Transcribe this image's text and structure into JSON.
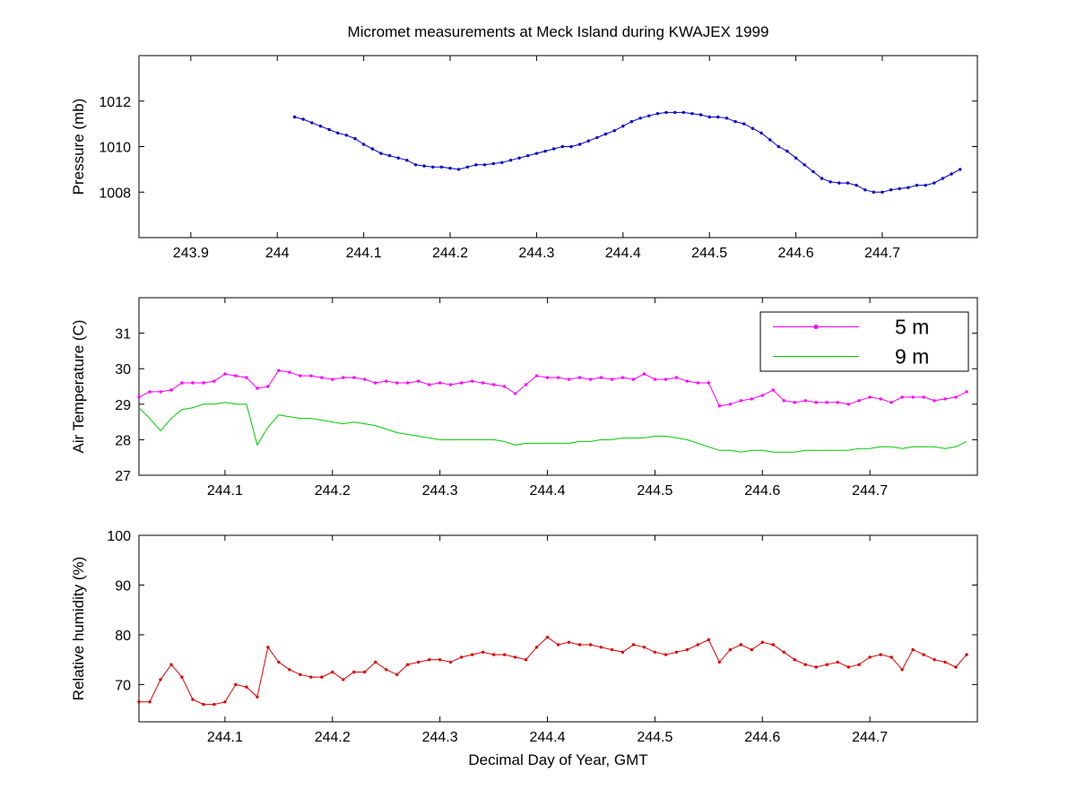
{
  "figure": {
    "title": "Micromet measurements at Meck Island during KWAJEX 1999",
    "background": "#ffffff",
    "axis_color": "#000000"
  },
  "chart_data": [
    {
      "name": "pressure",
      "type": "line",
      "ylabel": "Pressure (mb)",
      "grid": false,
      "xlim": [
        243.84,
        244.81
      ],
      "ylim": [
        1006,
        1014
      ],
      "xticks": [
        243.9,
        244,
        244.1,
        244.2,
        244.3,
        244.4,
        244.5,
        244.6,
        244.7
      ],
      "xtick_labels": [
        "243.9",
        "244",
        "244.1",
        "244.2",
        "244.3",
        "244.4",
        "244.5",
        "244.6",
        "244.7"
      ],
      "yticks": [
        1008,
        1010,
        1012
      ],
      "x": [
        244.02,
        244.03,
        244.04,
        244.05,
        244.06,
        244.07,
        244.08,
        244.09,
        244.1,
        244.11,
        244.12,
        244.13,
        244.14,
        244.15,
        244.16,
        244.17,
        244.18,
        244.19,
        244.2,
        244.21,
        244.22,
        244.23,
        244.24,
        244.25,
        244.26,
        244.27,
        244.28,
        244.29,
        244.3,
        244.31,
        244.32,
        244.33,
        244.34,
        244.35,
        244.36,
        244.37,
        244.38,
        244.39,
        244.4,
        244.41,
        244.42,
        244.43,
        244.44,
        244.45,
        244.46,
        244.47,
        244.48,
        244.49,
        244.5,
        244.51,
        244.52,
        244.53,
        244.54,
        244.55,
        244.56,
        244.57,
        244.58,
        244.59,
        244.6,
        244.61,
        244.62,
        244.63,
        244.64,
        244.65,
        244.66,
        244.67,
        244.68,
        244.69,
        244.7,
        244.71,
        244.72,
        244.73,
        244.74,
        244.75,
        244.76,
        244.77,
        244.78,
        244.79
      ],
      "series": [
        {
          "name": "Pressure",
          "color": "#0000cc",
          "marker": true,
          "values": [
            1011.3,
            1011.2,
            1011.05,
            1010.9,
            1010.75,
            1010.6,
            1010.5,
            1010.35,
            1010.1,
            1009.9,
            1009.7,
            1009.6,
            1009.5,
            1009.4,
            1009.2,
            1009.15,
            1009.1,
            1009.1,
            1009.05,
            1009.0,
            1009.1,
            1009.2,
            1009.2,
            1009.25,
            1009.3,
            1009.4,
            1009.5,
            1009.6,
            1009.7,
            1009.8,
            1009.9,
            1010.0,
            1010.0,
            1010.1,
            1010.25,
            1010.4,
            1010.55,
            1010.7,
            1010.9,
            1011.1,
            1011.25,
            1011.35,
            1011.45,
            1011.5,
            1011.5,
            1011.5,
            1011.45,
            1011.4,
            1011.3,
            1011.3,
            1011.25,
            1011.1,
            1011.0,
            1010.8,
            1010.6,
            1010.3,
            1010.0,
            1009.8,
            1009.5,
            1009.2,
            1008.9,
            1008.6,
            1008.45,
            1008.4,
            1008.4,
            1008.3,
            1008.1,
            1008.0,
            1008.0,
            1008.1,
            1008.15,
            1008.2,
            1008.3,
            1008.3,
            1008.4,
            1008.6,
            1008.8,
            1009.0
          ]
        }
      ]
    },
    {
      "name": "air-temperature",
      "type": "line",
      "ylabel": "Air Temperature (C)",
      "grid": false,
      "legend_position": "top-right",
      "xlim": [
        244.02,
        244.8
      ],
      "ylim": [
        27,
        32
      ],
      "xticks": [
        244.1,
        244.2,
        244.3,
        244.4,
        244.5,
        244.6,
        244.7
      ],
      "xtick_labels": [
        "244.1",
        "244.2",
        "244.3",
        "244.4",
        "244.5",
        "244.6",
        "244.7"
      ],
      "yticks": [
        27,
        28,
        29,
        30,
        31
      ],
      "x": [
        244.02,
        244.03,
        244.04,
        244.05,
        244.06,
        244.07,
        244.08,
        244.09,
        244.1,
        244.11,
        244.12,
        244.13,
        244.14,
        244.15,
        244.16,
        244.17,
        244.18,
        244.19,
        244.2,
        244.21,
        244.22,
        244.23,
        244.24,
        244.25,
        244.26,
        244.27,
        244.28,
        244.29,
        244.3,
        244.31,
        244.32,
        244.33,
        244.34,
        244.35,
        244.36,
        244.37,
        244.38,
        244.39,
        244.4,
        244.41,
        244.42,
        244.43,
        244.44,
        244.45,
        244.46,
        244.47,
        244.48,
        244.49,
        244.5,
        244.51,
        244.52,
        244.53,
        244.54,
        244.55,
        244.56,
        244.57,
        244.58,
        244.59,
        244.6,
        244.61,
        244.62,
        244.63,
        244.64,
        244.65,
        244.66,
        244.67,
        244.68,
        244.69,
        244.7,
        244.71,
        244.72,
        244.73,
        244.74,
        244.75,
        244.76,
        244.77,
        244.78,
        244.79
      ],
      "series": [
        {
          "name": "5 m",
          "color": "#ff00ff",
          "marker": true,
          "values": [
            29.2,
            29.35,
            29.35,
            29.4,
            29.6,
            29.6,
            29.6,
            29.65,
            29.85,
            29.8,
            29.75,
            29.45,
            29.5,
            29.95,
            29.9,
            29.8,
            29.8,
            29.75,
            29.7,
            29.75,
            29.75,
            29.7,
            29.6,
            29.65,
            29.6,
            29.6,
            29.65,
            29.55,
            29.6,
            29.55,
            29.6,
            29.65,
            29.6,
            29.55,
            29.5,
            29.3,
            29.55,
            29.8,
            29.75,
            29.75,
            29.7,
            29.75,
            29.7,
            29.75,
            29.7,
            29.75,
            29.7,
            29.85,
            29.7,
            29.7,
            29.75,
            29.65,
            29.6,
            29.6,
            28.95,
            29.0,
            29.1,
            29.15,
            29.25,
            29.4,
            29.1,
            29.05,
            29.1,
            29.05,
            29.05,
            29.05,
            29.0,
            29.1,
            29.2,
            29.15,
            29.05,
            29.2,
            29.2,
            29.2,
            29.1,
            29.15,
            29.2,
            29.35
          ]
        },
        {
          "name": "9 m",
          "color": "#00cc00",
          "marker": false,
          "values": [
            28.9,
            28.6,
            28.25,
            28.6,
            28.85,
            28.9,
            29.0,
            29.0,
            29.05,
            29.0,
            29.0,
            27.85,
            28.35,
            28.7,
            28.65,
            28.6,
            28.6,
            28.55,
            28.5,
            28.45,
            28.5,
            28.45,
            28.4,
            28.3,
            28.2,
            28.15,
            28.1,
            28.05,
            28.0,
            28.0,
            28.0,
            28.0,
            28.0,
            28.0,
            27.95,
            27.85,
            27.9,
            27.9,
            27.9,
            27.9,
            27.9,
            27.95,
            27.95,
            28.0,
            28.0,
            28.05,
            28.05,
            28.05,
            28.1,
            28.1,
            28.05,
            28.0,
            27.9,
            27.8,
            27.7,
            27.7,
            27.65,
            27.7,
            27.7,
            27.65,
            27.65,
            27.65,
            27.7,
            27.7,
            27.7,
            27.7,
            27.7,
            27.75,
            27.75,
            27.8,
            27.8,
            27.75,
            27.8,
            27.8,
            27.8,
            27.75,
            27.8,
            27.95
          ]
        }
      ]
    },
    {
      "name": "relative-humidity",
      "type": "line",
      "ylabel": "Relative humidity (%)",
      "xlabel": "Decimal Day of Year, GMT",
      "grid": false,
      "xlim": [
        244.02,
        244.8
      ],
      "ylim": [
        62.5,
        100
      ],
      "xticks": [
        244.1,
        244.2,
        244.3,
        244.4,
        244.5,
        244.6,
        244.7
      ],
      "xtick_labels": [
        "244.1",
        "244.2",
        "244.3",
        "244.4",
        "244.5",
        "244.6",
        "244.7"
      ],
      "yticks": [
        70,
        80,
        90,
        100
      ],
      "x": [
        244.02,
        244.03,
        244.04,
        244.05,
        244.06,
        244.07,
        244.08,
        244.09,
        244.1,
        244.11,
        244.12,
        244.13,
        244.14,
        244.15,
        244.16,
        244.17,
        244.18,
        244.19,
        244.2,
        244.21,
        244.22,
        244.23,
        244.24,
        244.25,
        244.26,
        244.27,
        244.28,
        244.29,
        244.3,
        244.31,
        244.32,
        244.33,
        244.34,
        244.35,
        244.36,
        244.37,
        244.38,
        244.39,
        244.4,
        244.41,
        244.42,
        244.43,
        244.44,
        244.45,
        244.46,
        244.47,
        244.48,
        244.49,
        244.5,
        244.51,
        244.52,
        244.53,
        244.54,
        244.55,
        244.56,
        244.57,
        244.58,
        244.59,
        244.6,
        244.61,
        244.62,
        244.63,
        244.64,
        244.65,
        244.66,
        244.67,
        244.68,
        244.69,
        244.7,
        244.71,
        244.72,
        244.73,
        244.74,
        244.75,
        244.76,
        244.77,
        244.78,
        244.79
      ],
      "series": [
        {
          "name": "Relative humidity",
          "color": "#dd0000",
          "marker": true,
          "values": [
            66.5,
            66.5,
            71,
            74,
            71.5,
            67,
            66,
            66,
            66.5,
            70,
            69.5,
            67.5,
            77.5,
            74.5,
            73,
            72,
            71.5,
            71.5,
            72.5,
            71,
            72.5,
            72.5,
            74.5,
            73,
            72,
            74,
            74.5,
            75,
            75,
            74.5,
            75.5,
            76,
            76.5,
            76,
            76,
            75.5,
            75,
            77.5,
            79.5,
            78,
            78.5,
            78,
            78,
            77.5,
            77,
            76.5,
            78,
            77.5,
            76.5,
            76,
            76.5,
            77,
            78,
            79,
            74.5,
            77,
            78,
            77,
            78.5,
            78,
            76.5,
            75,
            74,
            73.5,
            74,
            74.5,
            73.5,
            74,
            75.5,
            76,
            75.5,
            73,
            77,
            76,
            75,
            74.5,
            73.5,
            76
          ]
        }
      ]
    }
  ]
}
